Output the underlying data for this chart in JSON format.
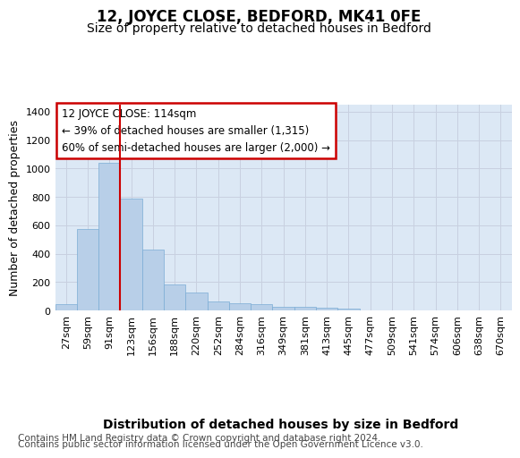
{
  "title": "12, JOYCE CLOSE, BEDFORD, MK41 0FE",
  "subtitle": "Size of property relative to detached houses in Bedford",
  "xlabel": "Distribution of detached houses by size in Bedford",
  "ylabel": "Number of detached properties",
  "footer_line1": "Contains HM Land Registry data © Crown copyright and database right 2024.",
  "footer_line2": "Contains public sector information licensed under the Open Government Licence v3.0.",
  "annotation_line1": "12 JOYCE CLOSE: 114sqm",
  "annotation_line2": "← 39% of detached houses are smaller (1,315)",
  "annotation_line3": "60% of semi-detached houses are larger (2,000) →",
  "vline_pos": 2.5,
  "bar_values": [
    45,
    575,
    1040,
    785,
    430,
    180,
    125,
    63,
    50,
    45,
    28,
    25,
    18,
    10,
    0,
    0,
    0,
    0,
    0,
    0,
    0
  ],
  "categories": [
    "27sqm",
    "59sqm",
    "91sqm",
    "123sqm",
    "156sqm",
    "188sqm",
    "220sqm",
    "252sqm",
    "284sqm",
    "316sqm",
    "349sqm",
    "381sqm",
    "413sqm",
    "445sqm",
    "477sqm",
    "509sqm",
    "541sqm",
    "574sqm",
    "606sqm",
    "638sqm",
    "670sqm"
  ],
  "bar_color": "#b8cfe8",
  "bar_edge_color": "#7aadd5",
  "vline_color": "#cc0000",
  "ylim": [
    0,
    1450
  ],
  "yticks": [
    0,
    200,
    400,
    600,
    800,
    1000,
    1200,
    1400
  ],
  "grid_color": "#c8d0e0",
  "bg_color": "#dce8f5",
  "annotation_box_color": "#cc0000",
  "title_fontsize": 12,
  "subtitle_fontsize": 10,
  "axis_label_fontsize": 10,
  "ylabel_fontsize": 9,
  "tick_fontsize": 8,
  "footer_fontsize": 7.5,
  "annotation_fontsize": 8.5
}
